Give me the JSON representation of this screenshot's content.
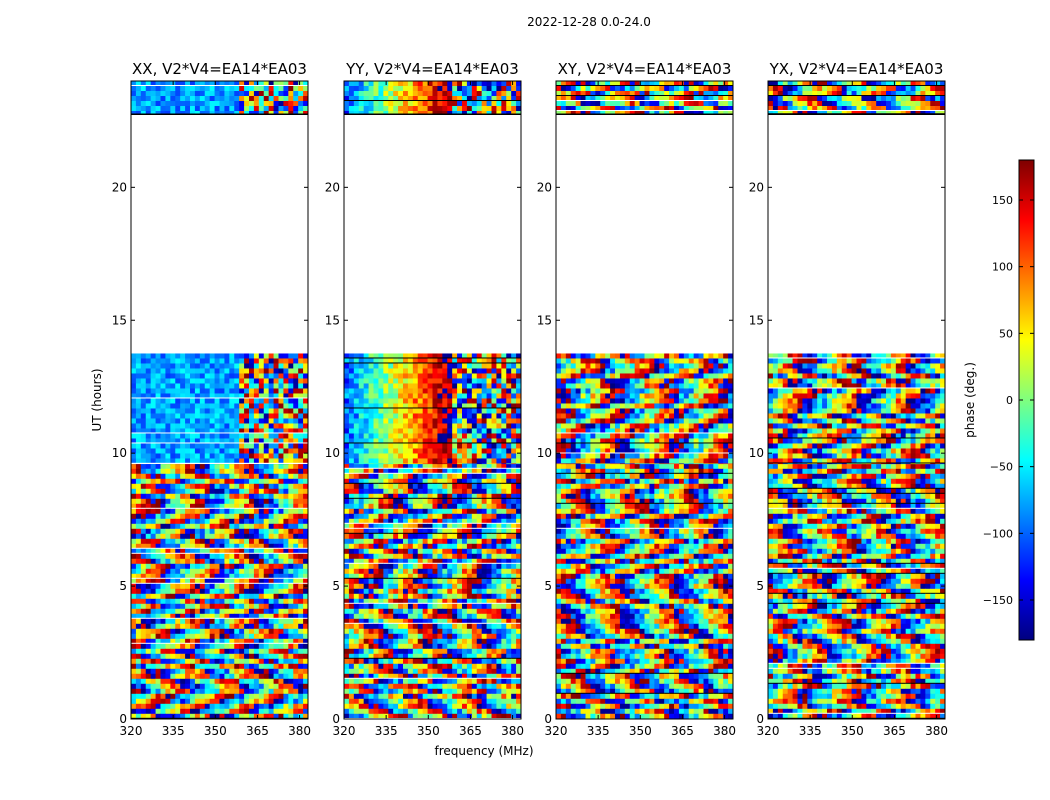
{
  "figure": {
    "suptitle": "2022-12-28 0.0-24.0",
    "ylabel": "UT (hours)",
    "xlabel": "frequency (MHz)"
  },
  "colorbar": {
    "label": "phase (deg.)",
    "range": [
      -180,
      180
    ],
    "ticks": [
      -150,
      -100,
      -50,
      0,
      50,
      100,
      150
    ],
    "tick_labels": [
      "−150",
      "−100",
      "−50",
      "0",
      "50",
      "100",
      "150"
    ],
    "colormap": "jet",
    "stops": [
      "#00007f",
      "#0000ff",
      "#007fff",
      "#00ffff",
      "#7fff7f",
      "#ffff00",
      "#ff7f00",
      "#ff0000",
      "#7f0000"
    ]
  },
  "panels": [
    {
      "title": "XX, V2*V4=EA14*EA03"
    },
    {
      "title": "YY, V2*V4=EA14*EA03"
    },
    {
      "title": "XY, V2*V4=EA14*EA03"
    },
    {
      "title": "YX, V2*V4=EA14*EA03"
    }
  ],
  "chart_data": {
    "type": "heatmap",
    "title": "2022-12-28 0.0-24.0",
    "panels": [
      "XX, V2*V4=EA14*EA03",
      "YY, V2*V4=EA14*EA03",
      "XY, V2*V4=EA14*EA03",
      "YX, V2*V4=EA14*EA03"
    ],
    "xlabel": "frequency (MHz)",
    "ylabel": "UT (hours)",
    "xlim": [
      320,
      383
    ],
    "ylim": [
      0,
      24
    ],
    "xticks": [
      320,
      335,
      350,
      365,
      380
    ],
    "yticks": [
      0,
      5,
      10,
      15,
      20
    ],
    "value_label": "phase (deg.)",
    "value_range": [
      -180,
      180
    ],
    "data_coverage_hours": [
      [
        0,
        9.6
      ],
      [
        9.6,
        13.75
      ],
      [
        22.75,
        24
      ]
    ],
    "gap_hours": [
      [
        13.75,
        22.75
      ]
    ]
  }
}
